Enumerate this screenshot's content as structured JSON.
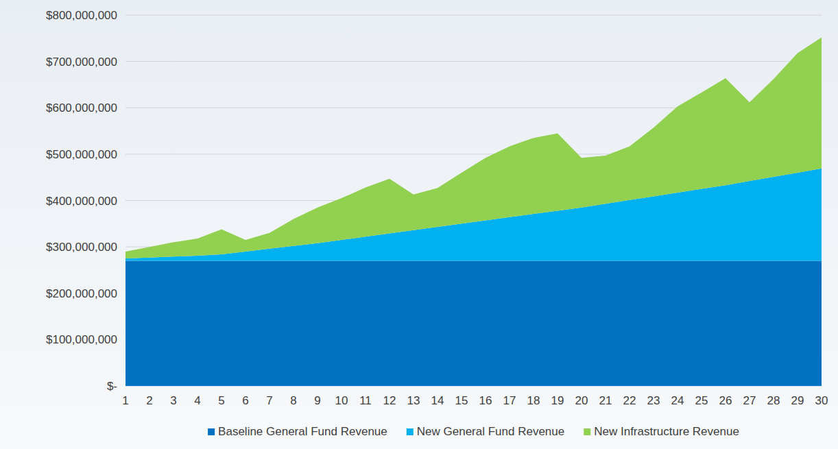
{
  "chart_data": {
    "type": "area",
    "stacked": true,
    "grid": true,
    "legend": "bottom",
    "categories": [
      "1",
      "2",
      "3",
      "4",
      "5",
      "6",
      "7",
      "8",
      "9",
      "10",
      "11",
      "12",
      "13",
      "14",
      "15",
      "16",
      "17",
      "18",
      "19",
      "20",
      "21",
      "22",
      "23",
      "24",
      "25",
      "26",
      "27",
      "28",
      "29",
      "30"
    ],
    "ylim": [
      0,
      800000000
    ],
    "yticks": [
      {
        "value": 0,
        "label": "$-"
      },
      {
        "value": 100000000,
        "label": "$100,000,000"
      },
      {
        "value": 200000000,
        "label": "$200,000,000"
      },
      {
        "value": 300000000,
        "label": "$300,000,000"
      },
      {
        "value": 400000000,
        "label": "$400,000,000"
      },
      {
        "value": 500000000,
        "label": "$500,000,000"
      },
      {
        "value": 600000000,
        "label": "$600,000,000"
      },
      {
        "value": 700000000,
        "label": "$700,000,000"
      },
      {
        "value": 800000000,
        "label": "$800,000,000"
      }
    ],
    "series": [
      {
        "name": "Baseline General Fund Revenue",
        "color": "#0070c0",
        "values": [
          270000000,
          270000000,
          270000000,
          270000000,
          270000000,
          270000000,
          270000000,
          270000000,
          270000000,
          270000000,
          270000000,
          270000000,
          270000000,
          270000000,
          270000000,
          270000000,
          270000000,
          270000000,
          270000000,
          270000000,
          270000000,
          270000000,
          270000000,
          270000000,
          270000000,
          270000000,
          270000000,
          270000000,
          270000000,
          270000000
        ]
      },
      {
        "name": "New General Fund Revenue",
        "color": "#00b0f0",
        "values": [
          5000000,
          7000000,
          9000000,
          11000000,
          14000000,
          20000000,
          26000000,
          32000000,
          38000000,
          45000000,
          52000000,
          59000000,
          66000000,
          73000000,
          80000000,
          87000000,
          94000000,
          101000000,
          108000000,
          115000000,
          123000000,
          131000000,
          139000000,
          147000000,
          155000000,
          163000000,
          172000000,
          181000000,
          190000000,
          199000000
        ]
      },
      {
        "name": "New Infrastructure Revenue",
        "color": "#92d050",
        "values": [
          15000000,
          23000000,
          31000000,
          37000000,
          54000000,
          25000000,
          34000000,
          58000000,
          77000000,
          90000000,
          106000000,
          118000000,
          77000000,
          84000000,
          110000000,
          135000000,
          153000000,
          164000000,
          167000000,
          107000000,
          104000000,
          116000000,
          148000000,
          186000000,
          208000000,
          231000000,
          170000000,
          211000000,
          258000000,
          283000000
        ]
      }
    ]
  }
}
